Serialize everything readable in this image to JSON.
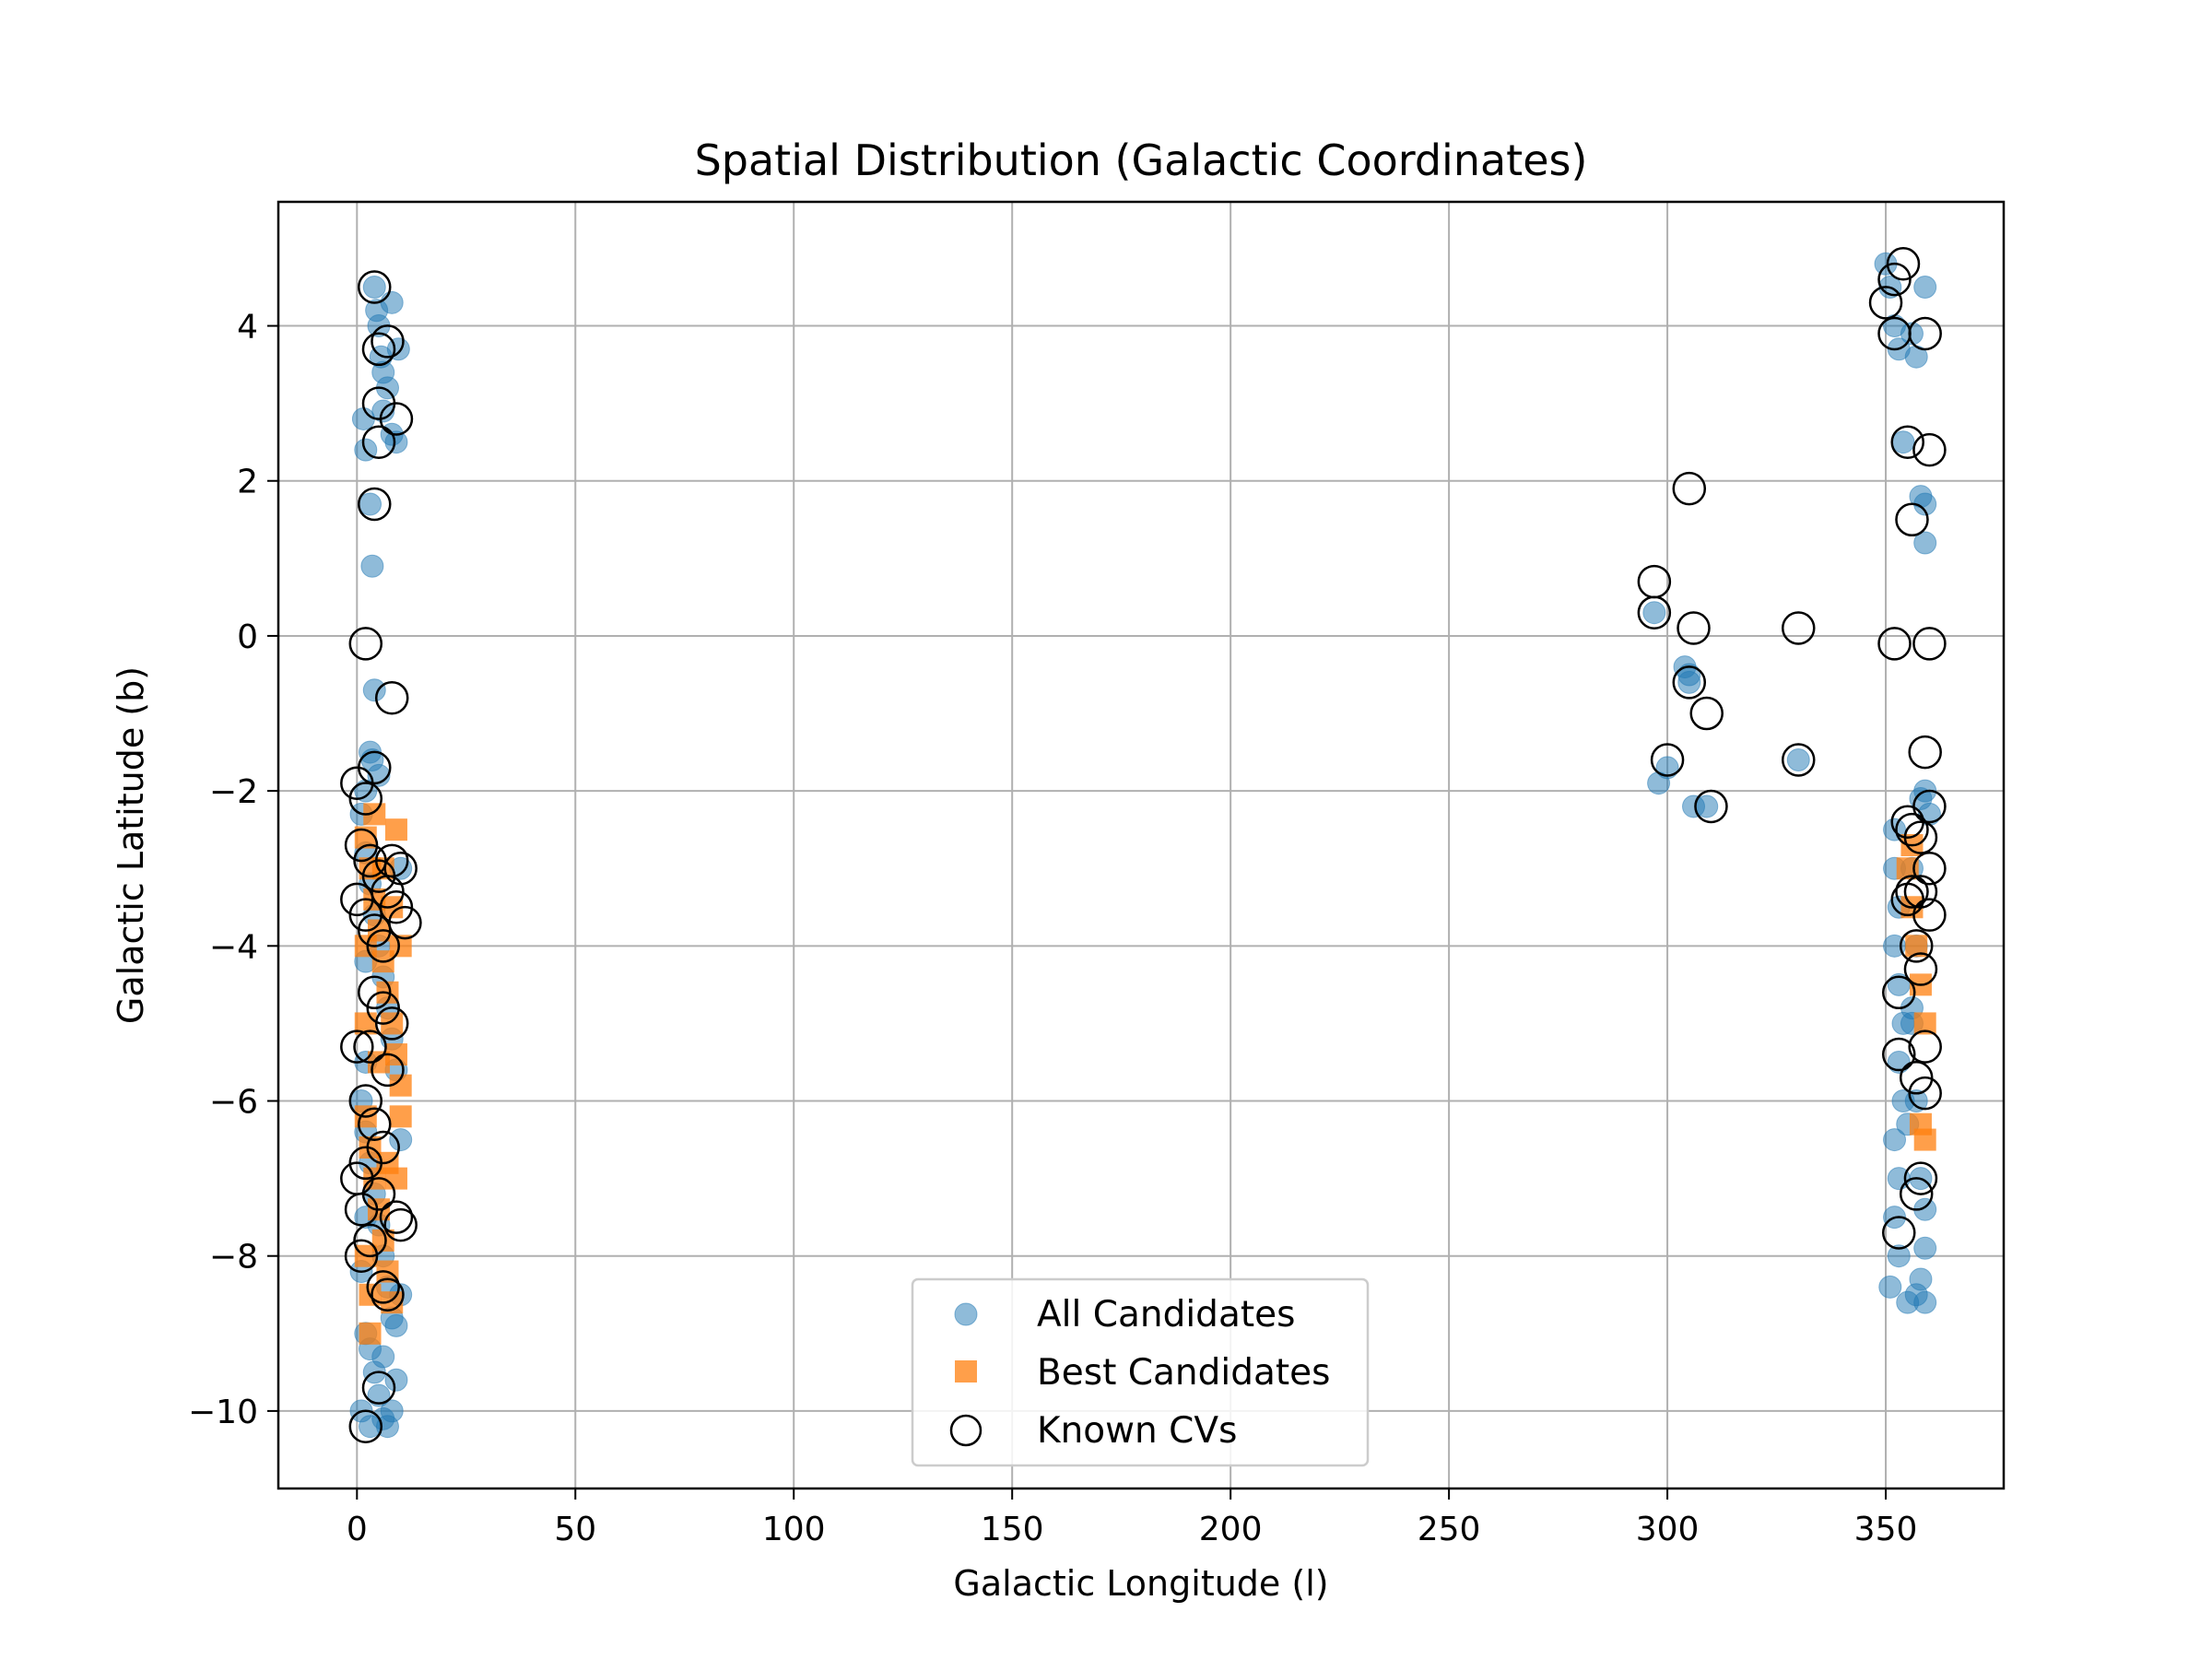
{
  "chart_data": {
    "type": "scatter",
    "title": "Spatial Distribution (Galactic Coordinates)",
    "xlabel": "Galactic Longitude (l)",
    "ylabel": "Galactic Latitude (b)",
    "xlim": [
      -18,
      377
    ],
    "ylim": [
      -11,
      5.6
    ],
    "xticks": [
      0,
      50,
      100,
      150,
      200,
      250,
      300,
      350
    ],
    "yticks": [
      -10,
      -8,
      -6,
      -4,
      -2,
      0,
      2,
      4
    ],
    "ytick_labels": [
      "−10",
      "−8",
      "−6",
      "−4",
      "−2",
      "0",
      "2",
      "4"
    ],
    "grid": true,
    "legend_position": "lower-center",
    "colors": {
      "all": "#1f77b4",
      "best": "#ff7f0e",
      "known": "#000000"
    },
    "series": [
      {
        "name": "All Candidates",
        "marker": "circle",
        "points": [
          [
            1.5,
            2.8
          ],
          [
            2,
            2.4
          ],
          [
            3,
            1.7
          ],
          [
            3.5,
            0.9
          ],
          [
            4,
            4.5
          ],
          [
            4.5,
            4.2
          ],
          [
            5,
            4.0
          ],
          [
            5.5,
            3.6
          ],
          [
            6,
            3.4
          ],
          [
            7,
            3.2
          ],
          [
            8,
            4.3
          ],
          [
            8,
            2.6
          ],
          [
            9,
            2.5
          ],
          [
            9.5,
            3.7
          ],
          [
            6,
            2.9
          ],
          [
            4,
            -0.7
          ],
          [
            3,
            -1.5
          ],
          [
            3.5,
            -1.6
          ],
          [
            5,
            -1.8
          ],
          [
            2,
            -2.0
          ],
          [
            1,
            -2.3
          ],
          [
            2,
            -2.8
          ],
          [
            3,
            -3.2
          ],
          [
            4,
            -3.6
          ],
          [
            5,
            -4.0
          ],
          [
            6,
            -4.4
          ],
          [
            7,
            -4.8
          ],
          [
            8,
            -5.2
          ],
          [
            9,
            -5.6
          ],
          [
            1,
            -6.0
          ],
          [
            2,
            -6.4
          ],
          [
            3,
            -6.8
          ],
          [
            4,
            -7.2
          ],
          [
            5,
            -7.6
          ],
          [
            6,
            -8.0
          ],
          [
            7,
            -8.4
          ],
          [
            8,
            -8.8
          ],
          [
            9,
            -8.9
          ],
          [
            10,
            -8.5
          ],
          [
            3,
            -9.2
          ],
          [
            4,
            -9.5
          ],
          [
            5,
            -9.8
          ],
          [
            6,
            -10.1
          ],
          [
            7,
            -10.2
          ],
          [
            8,
            -10.0
          ],
          [
            9,
            -9.6
          ],
          [
            2,
            -9.0
          ],
          [
            1,
            -10.0
          ],
          [
            3,
            -10.2
          ],
          [
            6,
            -9.3
          ],
          [
            2,
            -4.2
          ],
          [
            2,
            -5.5
          ],
          [
            2,
            -7.5
          ],
          [
            10,
            -3.0
          ],
          [
            10,
            -6.5
          ],
          [
            1,
            -8.2
          ],
          [
            297,
            0.3
          ],
          [
            298,
            -1.9
          ],
          [
            300,
            -1.7
          ],
          [
            304,
            -0.4
          ],
          [
            305,
            -0.6
          ],
          [
            306,
            -2.2
          ],
          [
            309,
            -2.2
          ],
          [
            330,
            -1.6
          ],
          [
            305,
            -0.5
          ],
          [
            350,
            4.8
          ],
          [
            351,
            4.5
          ],
          [
            352,
            4.0
          ],
          [
            353,
            3.7
          ],
          [
            356,
            3.9
          ],
          [
            357,
            3.6
          ],
          [
            359,
            4.5
          ],
          [
            354,
            2.5
          ],
          [
            358,
            1.8
          ],
          [
            359,
            1.7
          ],
          [
            359,
            1.2
          ],
          [
            358,
            -2.1
          ],
          [
            359,
            -2.0
          ],
          [
            360,
            -2.3
          ],
          [
            352,
            -2.5
          ],
          [
            352,
            -3.0
          ],
          [
            353,
            -3.5
          ],
          [
            352,
            -4.0
          ],
          [
            353,
            -4.5
          ],
          [
            354,
            -5.0
          ],
          [
            353,
            -5.5
          ],
          [
            354,
            -6.0
          ],
          [
            352,
            -6.5
          ],
          [
            353,
            -7.0
          ],
          [
            352,
            -7.5
          ],
          [
            353,
            -8.0
          ],
          [
            351,
            -8.4
          ],
          [
            355,
            -8.6
          ],
          [
            357,
            -8.5
          ],
          [
            358,
            -8.3
          ],
          [
            359,
            -8.6
          ],
          [
            359,
            -7.9
          ],
          [
            356,
            -3.0
          ],
          [
            357,
            -4.0
          ],
          [
            356,
            -5.0
          ],
          [
            357,
            -6.0
          ],
          [
            358,
            -7.0
          ],
          [
            359,
            -7.4
          ],
          [
            355,
            -6.3
          ],
          [
            356,
            -4.8
          ]
        ]
      },
      {
        "name": "Best Candidates",
        "marker": "square",
        "points": [
          [
            2,
            -2.6
          ],
          [
            3,
            -3.0
          ],
          [
            4,
            -3.4
          ],
          [
            5,
            -3.8
          ],
          [
            6,
            -4.2
          ],
          [
            7,
            -4.6
          ],
          [
            8,
            -5.0
          ],
          [
            9,
            -5.4
          ],
          [
            10,
            -5.8
          ],
          [
            2,
            -6.2
          ],
          [
            3,
            -6.6
          ],
          [
            4,
            -7.0
          ],
          [
            5,
            -7.4
          ],
          [
            6,
            -7.8
          ],
          [
            7,
            -8.2
          ],
          [
            8,
            -8.6
          ],
          [
            9,
            -7.0
          ],
          [
            10,
            -6.2
          ],
          [
            2,
            -4.0
          ],
          [
            2,
            -5.0
          ],
          [
            2,
            -8.0
          ],
          [
            3,
            -8.5
          ],
          [
            3,
            -9.0
          ],
          [
            9,
            -2.5
          ],
          [
            10,
            -4.0
          ],
          [
            4,
            -2.3
          ],
          [
            6,
            -3.0
          ],
          [
            8,
            -3.5
          ],
          [
            7,
            -6.8
          ],
          [
            5,
            -5.5
          ],
          [
            355,
            -3.0
          ],
          [
            356,
            -3.5
          ],
          [
            357,
            -4.0
          ],
          [
            358,
            -4.5
          ],
          [
            359,
            -5.0
          ],
          [
            358,
            -6.3
          ],
          [
            359,
            -6.5
          ],
          [
            356,
            -2.7
          ]
        ]
      },
      {
        "name": "Known CVs",
        "marker": "open-circle",
        "points": [
          [
            4,
            4.5
          ],
          [
            5,
            3.7
          ],
          [
            7,
            3.8
          ],
          [
            5,
            3.0
          ],
          [
            9,
            2.8
          ],
          [
            5,
            2.5
          ],
          [
            4,
            1.7
          ],
          [
            2,
            -0.1
          ],
          [
            8,
            -0.8
          ],
          [
            4,
            -1.7
          ],
          [
            0,
            -1.9
          ],
          [
            2,
            -2.1
          ],
          [
            1,
            -2.7
          ],
          [
            3,
            -2.9
          ],
          [
            5,
            -3.1
          ],
          [
            7,
            -3.3
          ],
          [
            9,
            -3.5
          ],
          [
            11,
            -3.7
          ],
          [
            0,
            -3.4
          ],
          [
            2,
            -3.6
          ],
          [
            4,
            -3.8
          ],
          [
            6,
            -4.0
          ],
          [
            8,
            -2.9
          ],
          [
            10,
            -3.0
          ],
          [
            4,
            -4.6
          ],
          [
            6,
            -4.8
          ],
          [
            8,
            -5.0
          ],
          [
            3,
            -5.3
          ],
          [
            7,
            -5.6
          ],
          [
            0,
            -5.3
          ],
          [
            2,
            -6.0
          ],
          [
            4,
            -6.3
          ],
          [
            6,
            -6.6
          ],
          [
            2,
            -6.8
          ],
          [
            0,
            -7.0
          ],
          [
            5,
            -7.2
          ],
          [
            1,
            -7.4
          ],
          [
            3,
            -7.8
          ],
          [
            9,
            -7.5
          ],
          [
            10,
            -7.6
          ],
          [
            6,
            -8.4
          ],
          [
            7,
            -8.5
          ],
          [
            1,
            -8.0
          ],
          [
            5,
            -9.7
          ],
          [
            2,
            -10.2
          ],
          [
            297,
            0.7
          ],
          [
            297,
            0.3
          ],
          [
            306,
            0.1
          ],
          [
            305,
            1.9
          ],
          [
            305,
            -0.6
          ],
          [
            309,
            -1.0
          ],
          [
            300,
            -1.6
          ],
          [
            310,
            -2.2
          ],
          [
            330,
            0.1
          ],
          [
            330,
            -1.6
          ],
          [
            354,
            4.8
          ],
          [
            352,
            4.6
          ],
          [
            350,
            4.3
          ],
          [
            352,
            3.9
          ],
          [
            359,
            3.9
          ],
          [
            355,
            2.5
          ],
          [
            360,
            2.4
          ],
          [
            356,
            1.5
          ],
          [
            352,
            -0.1
          ],
          [
            360,
            -0.1
          ],
          [
            359,
            -1.5
          ],
          [
            360,
            -2.2
          ],
          [
            355,
            -2.4
          ],
          [
            356,
            -2.5
          ],
          [
            358,
            -2.6
          ],
          [
            360,
            -3.0
          ],
          [
            356,
            -3.3
          ],
          [
            355,
            -3.4
          ],
          [
            358,
            -3.3
          ],
          [
            360,
            -3.6
          ],
          [
            357,
            -4.0
          ],
          [
            358,
            -4.3
          ],
          [
            353,
            -4.6
          ],
          [
            359,
            -5.3
          ],
          [
            353,
            -5.4
          ],
          [
            357,
            -5.7
          ],
          [
            359,
            -5.9
          ],
          [
            358,
            -7.0
          ],
          [
            357,
            -7.2
          ],
          [
            353,
            -7.7
          ]
        ]
      }
    ],
    "legend": [
      "All Candidates",
      "Best Candidates",
      "Known CVs"
    ]
  }
}
